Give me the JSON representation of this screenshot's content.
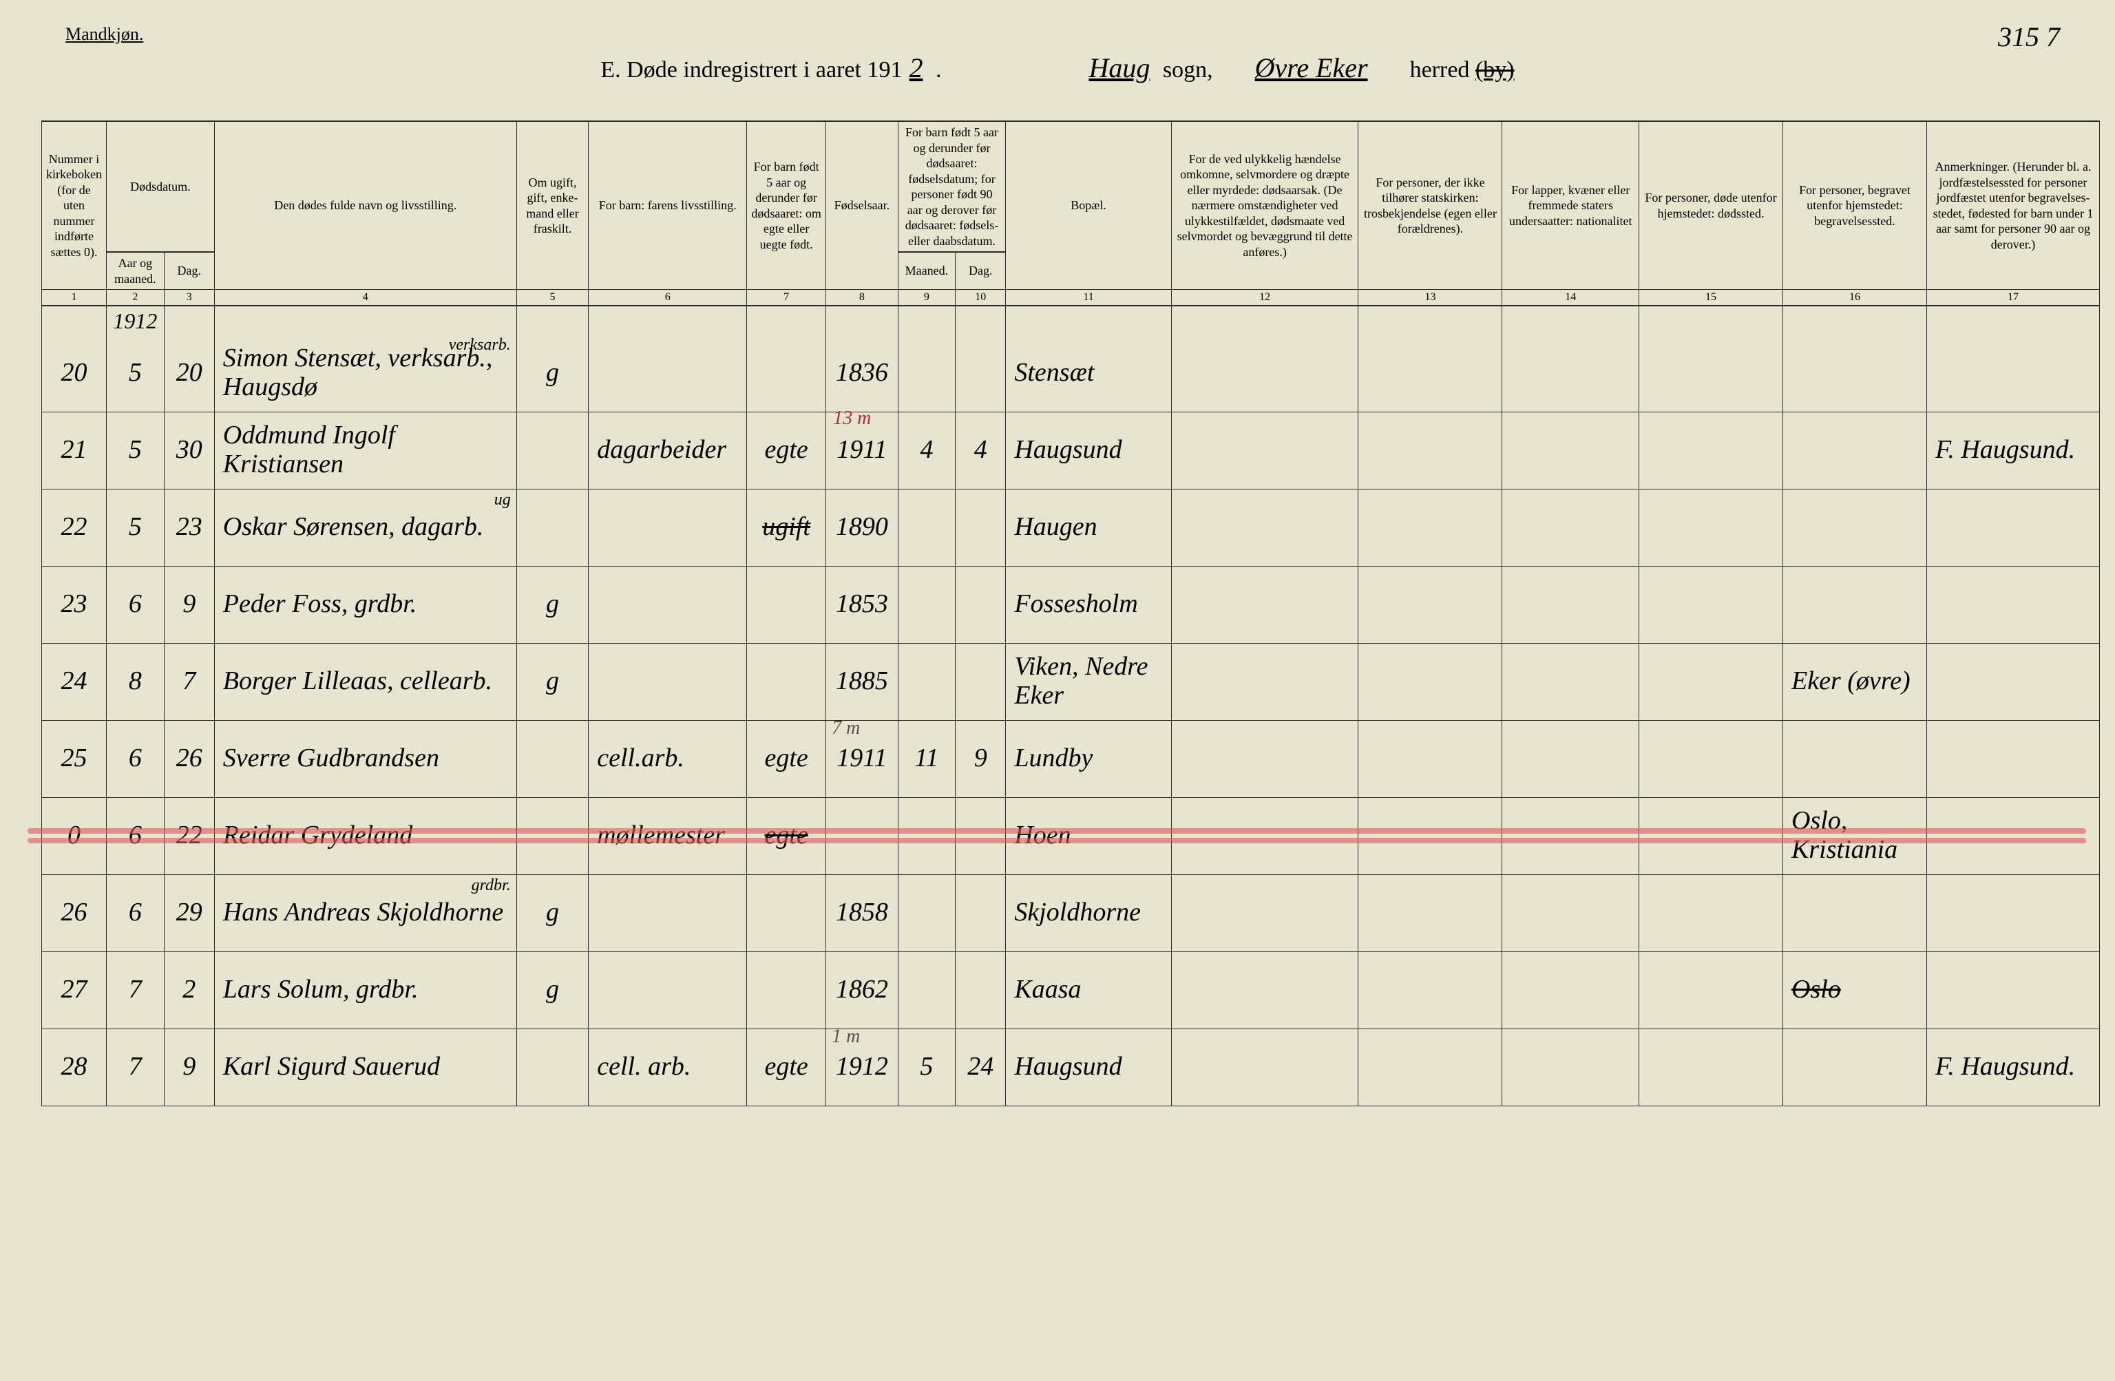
{
  "header": {
    "gender": "Mandkjøn.",
    "title_prefix": "E.  Døde indregistrert i aaret 191",
    "year_suffix": "2",
    "sogn_hand": "Haug",
    "sogn_label": "sogn,",
    "herred_hand": "Øvre Eker",
    "herred_label": "herred",
    "by_struck": "(by)",
    "page_no": "315 7"
  },
  "columns": {
    "c1": "Nummer i kirke­boken (for de uten nummer indførte sættes 0).",
    "c2": "Dødsdatum.",
    "c2a": "Aar og maaned.",
    "c2b": "Dag.",
    "c4": "Den dødes fulde navn og livsstilling.",
    "c5": "Om ugift, gift, enke­mand eller fraskilt.",
    "c6": "For barn: farens livsstilling.",
    "c7": "For barn født 5 aar og derunder før døds­aaret: om egte eller uegte født.",
    "c8": "Fødsels­aar.",
    "c9_10": "For barn født 5 aar og der­under før dødsaaret: fødselsdatum; for personer født 90 aar og derover før dødsaaret: fødsels- eller daabsdatum.",
    "c9": "Maaned.",
    "c10": "Dag.",
    "c11": "Bopæl.",
    "c12": "For de ved ulykkelig hændelse omkomne, selvmordere og dræpte eller myrdede: dødsaarsak. (De nærmere omstæn­digheter ved ulykkes­tilfældet, dødsmaate ved selvmordet og bevæggrund til dette anføres.)",
    "c13": "For personer, der ikke tilhører statskirken: trosbekjendelse (egen eller forældrenes).",
    "c14": "For lapper, kvæner eller fremmede staters undersaatter: nationalitet",
    "c15": "For personer, døde utenfor hjemstedet: dødssted.",
    "c16": "For personer, begravet utenfor hjemstedet: begravelsessted.",
    "c17": "Anmerkninger. (Herunder bl. a. jordfæstelsessted for personer jordfæstet utenfor begravelses­stedet, fødested for barn under 1 aar samt for personer 90 aar og derover.)"
  },
  "colnums": [
    "1",
    "2",
    "3",
    "4",
    "5",
    "6",
    "7",
    "8",
    "9",
    "10",
    "11",
    "12",
    "13",
    "14",
    "15",
    "16",
    "17"
  ],
  "yearrow": "1912",
  "rows": [
    {
      "n": "20",
      "mo": "5",
      "d": "20",
      "name": "Simon Stensæt, verksarb., Haugsdø",
      "civ": "g",
      "far": "",
      "eu": "",
      "faar": "1836",
      "fm": "",
      "fd": "",
      "bopael": "Stensæt",
      "c12": "",
      "c13": "",
      "c14": "",
      "c15": "",
      "c16": "",
      "c17": "",
      "ann": "",
      "sup": "verksarb."
    },
    {
      "n": "21",
      "mo": "5",
      "d": "30",
      "name": "Oddmund Ingolf Kristiansen",
      "civ": "",
      "far": "dagarbeider",
      "eu": "egte",
      "faar": "1911",
      "fm": "4",
      "fd": "4",
      "bopael": "Haugsund",
      "c12": "",
      "c13": "",
      "c14": "",
      "c15": "",
      "c16": "",
      "c17": "F. Haugsund.",
      "ann": "13 m"
    },
    {
      "n": "22",
      "mo": "5",
      "d": "23",
      "name": "Oskar Sørensen, dagarb.",
      "civ": "",
      "far": "",
      "eu": "",
      "faar": "1890",
      "fm": "",
      "fd": "",
      "bopael": "Haugen",
      "c12": "",
      "c13": "",
      "c14": "",
      "c15": "",
      "c16": "",
      "c17": "",
      "strikeeu": "ugift",
      "sup": "ug"
    },
    {
      "n": "23",
      "mo": "6",
      "d": "9",
      "name": "Peder Foss, grdbr.",
      "civ": "g",
      "far": "",
      "eu": "",
      "faar": "1853",
      "fm": "",
      "fd": "",
      "bopael": "Fossesholm",
      "c12": "",
      "c13": "",
      "c14": "",
      "c15": "",
      "c16": "",
      "c17": ""
    },
    {
      "n": "24",
      "mo": "8",
      "d": "7",
      "name": "Borger Lilleaas, cellearb.",
      "civ": "g",
      "far": "",
      "eu": "",
      "faar": "1885",
      "fm": "",
      "fd": "",
      "bopael": "Viken, Nedre Eker",
      "c12": "",
      "c13": "",
      "c14": "",
      "c15": "",
      "c16": "Eker (øvre)",
      "c17": ""
    },
    {
      "n": "25",
      "mo": "6",
      "d": "26",
      "name": "Sverre Gudbrandsen",
      "civ": "",
      "far": "cell.arb.",
      "eu": "egte",
      "faar": "1911",
      "fm": "11",
      "fd": "9",
      "bopael": "Lundby",
      "c12": "",
      "c13": "",
      "c14": "",
      "c15": "",
      "c16": "",
      "c17": "",
      "anngray": "7 m"
    },
    {
      "n": "0",
      "mo": "6",
      "d": "22",
      "name": "Reidar Grydeland",
      "civ": "",
      "far": "møllemester",
      "eu": "egte",
      "faar": "",
      "fm": "",
      "fd": "",
      "bopael": "Hoen",
      "c12": "",
      "c13": "",
      "c14": "",
      "c15": "",
      "c16": "Oslo, Kristiania",
      "c17": "",
      "redline": true,
      "strikeeu": "egte"
    },
    {
      "n": "26",
      "mo": "6",
      "d": "29",
      "name": "Hans Andreas Skjoldhorne",
      "civ": "g",
      "far": "",
      "eu": "",
      "faar": "1858",
      "fm": "",
      "fd": "",
      "bopael": "Skjoldhorne",
      "c12": "",
      "c13": "",
      "c14": "",
      "c15": "",
      "c16": "",
      "c17": "",
      "sup": "grdbr."
    },
    {
      "n": "27",
      "mo": "7",
      "d": "2",
      "name": "Lars Solum, grdbr.",
      "civ": "g",
      "far": "",
      "eu": "",
      "faar": "1862",
      "fm": "",
      "fd": "",
      "bopael": "Kaasa",
      "c12": "",
      "c13": "",
      "c14": "",
      "c15": "",
      "c16": "",
      "c17": "",
      "c16strike": "Oslo"
    },
    {
      "n": "28",
      "mo": "7",
      "d": "9",
      "name": "Karl Sigurd Sauerud",
      "civ": "",
      "far": "cell. arb.",
      "eu": "egte",
      "faar": "1912",
      "fm": "5",
      "fd": "24",
      "bopael": "Haugsund",
      "c12": "",
      "c13": "",
      "c14": "",
      "c15": "",
      "c16": "",
      "c17": "F. Haugsund.",
      "anngray": "1 m"
    }
  ],
  "widths": {
    "c1": 90,
    "c2a": 80,
    "c2b": 70,
    "c4": 420,
    "c5": 100,
    "c6": 220,
    "c7": 110,
    "c8": 100,
    "c9": 80,
    "c10": 70,
    "c11": 230,
    "c12": 260,
    "c13": 200,
    "c14": 190,
    "c15": 200,
    "c16": 200,
    "c17": 240
  }
}
